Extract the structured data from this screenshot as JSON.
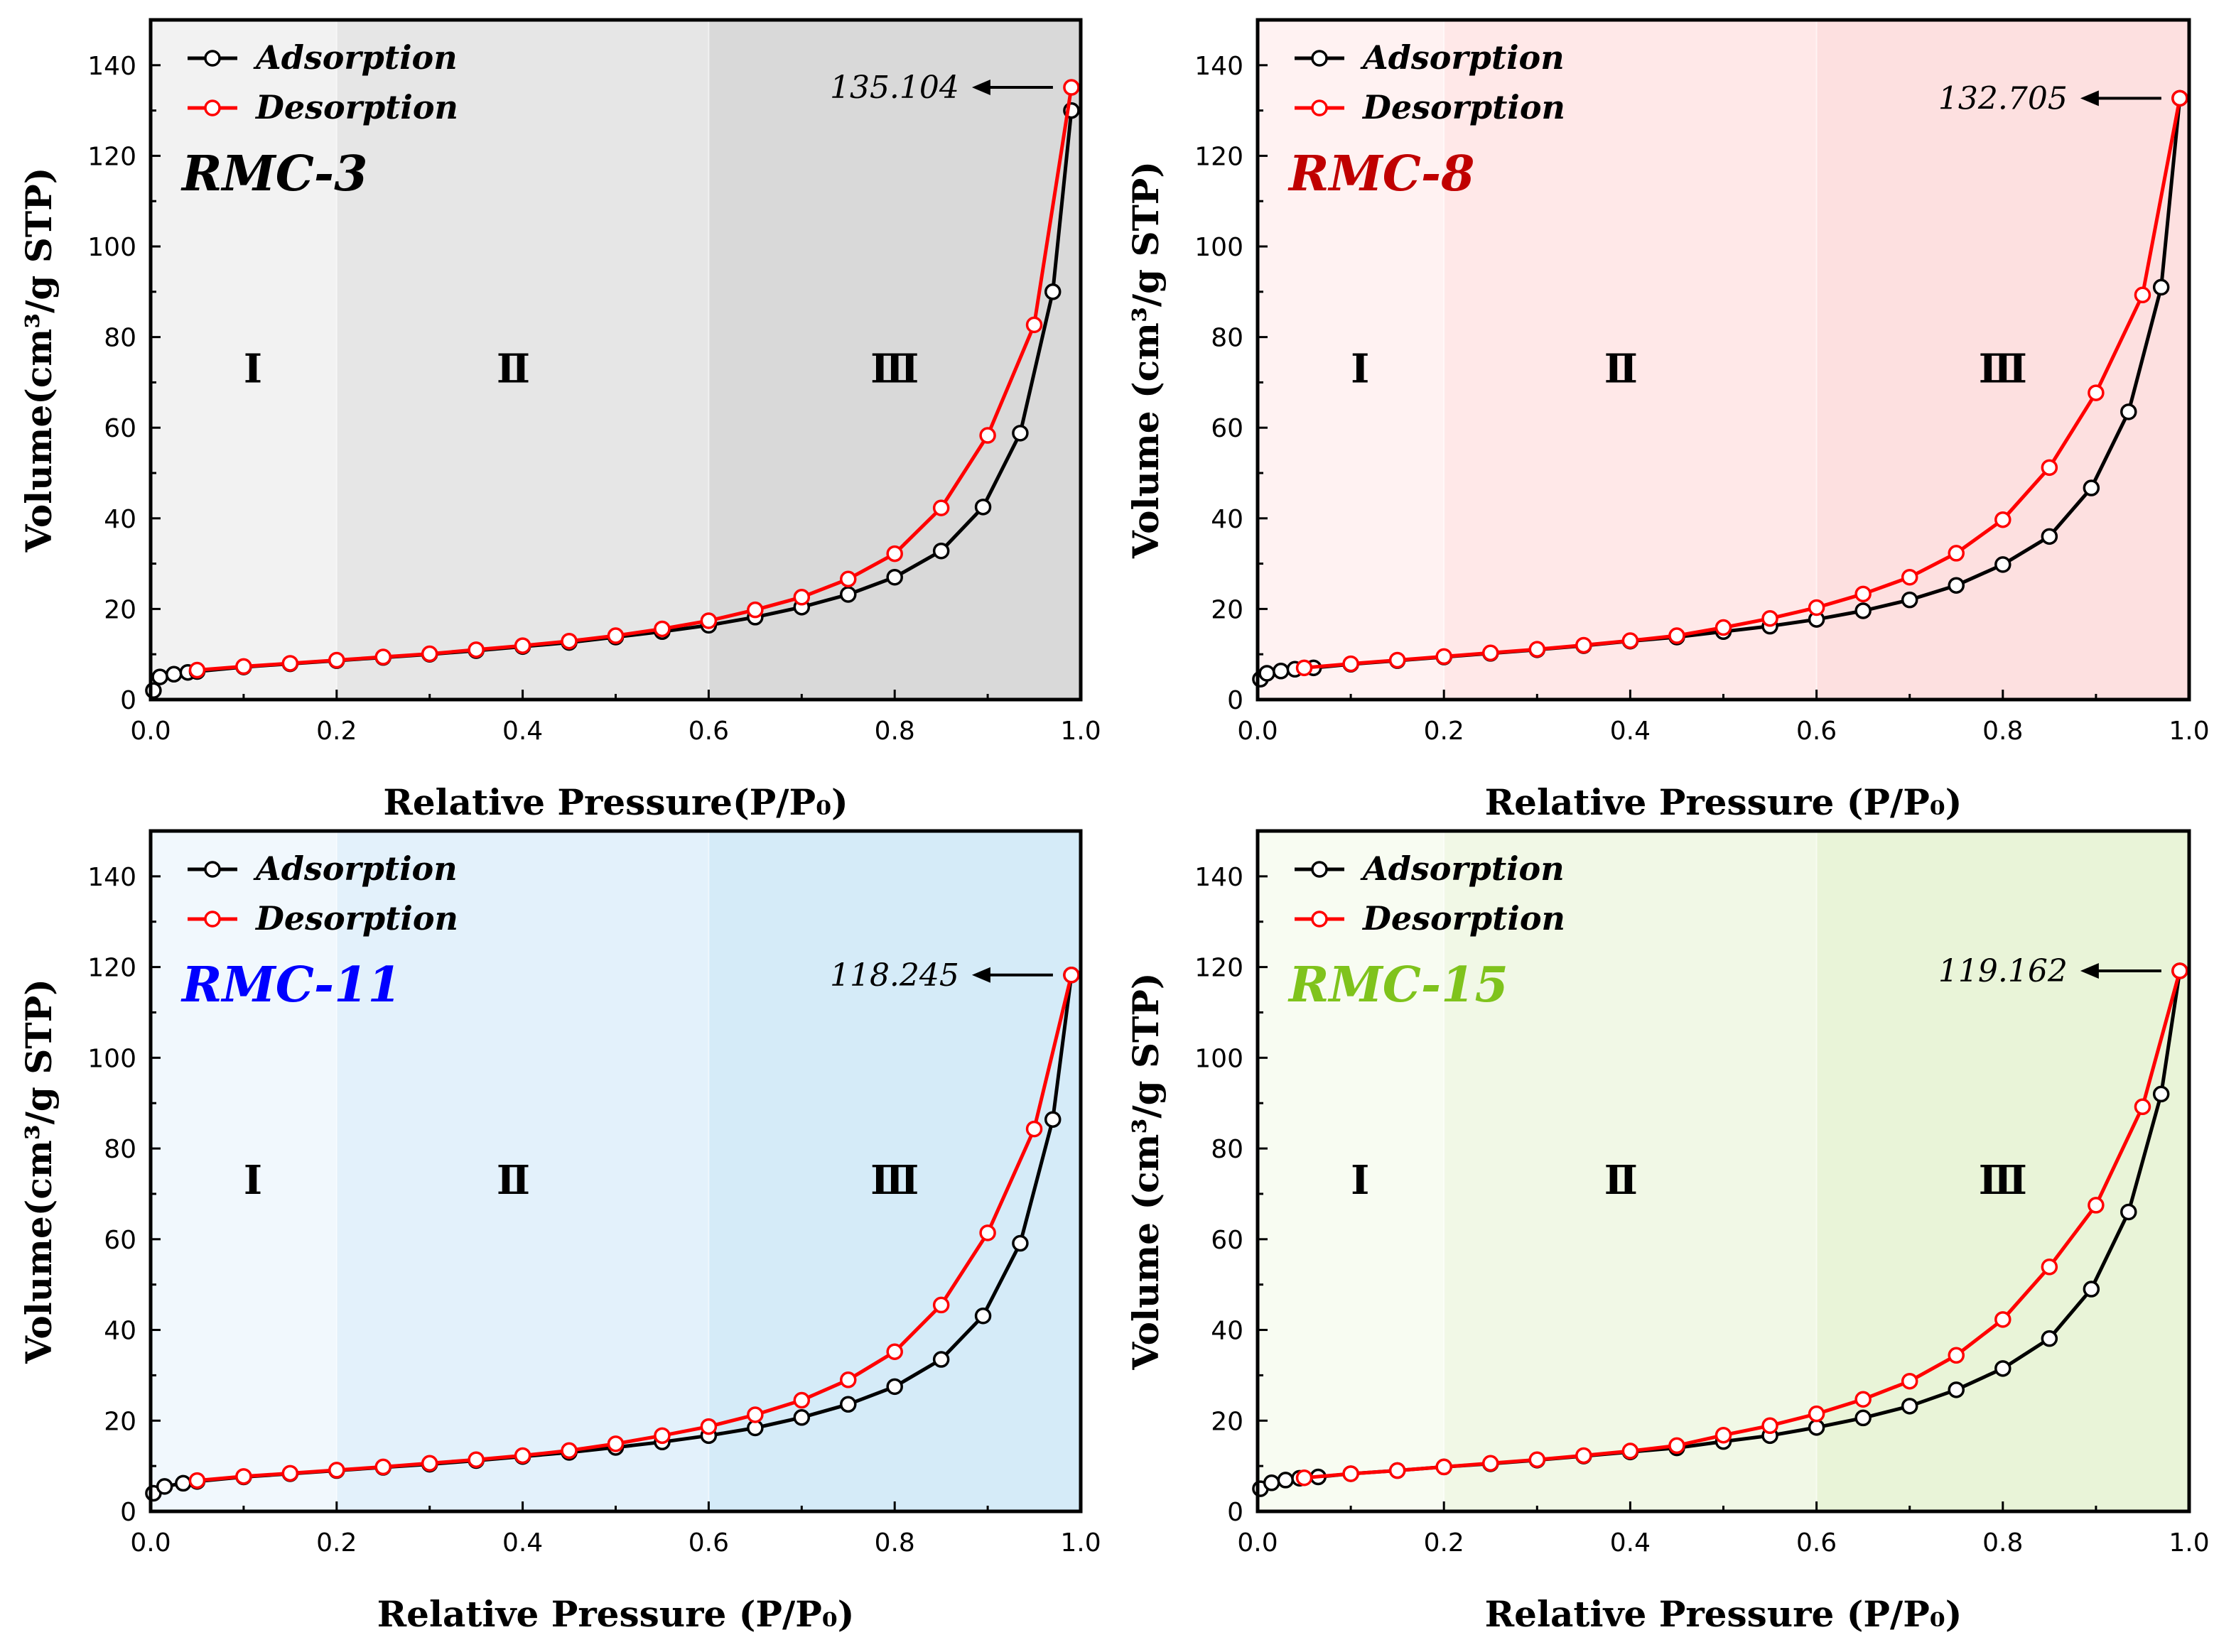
{
  "chart_data": [
    {
      "type": "line",
      "sample_label": "RMC-3",
      "label_color": "#000000",
      "zone_colors": [
        "#f2f2f2",
        "#e6e6e6",
        "#d9d9d9"
      ],
      "xlabel": "Relative Pressure(P/P₀)",
      "ylabel": "Volume(cm³/g STP)",
      "xlim": [
        0,
        1.0
      ],
      "ylim": [
        0,
        150
      ],
      "xticks": [
        "0.0",
        "0.2",
        "0.4",
        "0.6",
        "0.8",
        "1.0"
      ],
      "yticks": [
        "0",
        "20",
        "40",
        "60",
        "80",
        "100",
        "120",
        "140"
      ],
      "regions": [
        "Ⅰ",
        "Ⅱ",
        "Ⅲ"
      ],
      "region_bounds": [
        0,
        0.2,
        0.6,
        1.0
      ],
      "annotation": {
        "text": "135.104",
        "x": 0.99,
        "y": 135.104
      },
      "legend": [
        "Adsorption",
        "Desorption"
      ],
      "series": [
        {
          "name": "Adsorption",
          "color": "#000000",
          "x": [
            0.003,
            0.01,
            0.025,
            0.04,
            0.05,
            0.1,
            0.15,
            0.2,
            0.25,
            0.3,
            0.35,
            0.4,
            0.45,
            0.5,
            0.55,
            0.6,
            0.65,
            0.7,
            0.75,
            0.8,
            0.85,
            0.895,
            0.935,
            0.97,
            0.99
          ],
          "y": [
            2.0,
            5.0,
            5.6,
            6.0,
            6.2,
            7.2,
            7.9,
            8.6,
            9.3,
            10.0,
            10.8,
            11.7,
            12.6,
            13.8,
            15.0,
            16.4,
            18.2,
            20.4,
            23.2,
            27.0,
            32.8,
            42.5,
            58.8,
            90.0,
            130.0
          ]
        },
        {
          "name": "Desorption",
          "color": "#ff0000",
          "x": [
            0.05,
            0.1,
            0.15,
            0.2,
            0.25,
            0.3,
            0.35,
            0.4,
            0.45,
            0.5,
            0.55,
            0.6,
            0.65,
            0.7,
            0.75,
            0.8,
            0.85,
            0.9,
            0.95,
            0.99
          ],
          "y": [
            6.5,
            7.3,
            8.0,
            8.7,
            9.4,
            10.1,
            11.0,
            11.9,
            12.9,
            14.1,
            15.6,
            17.4,
            19.8,
            22.6,
            26.6,
            32.2,
            42.3,
            58.3,
            82.7,
            135.104
          ]
        }
      ]
    },
    {
      "type": "line",
      "sample_label": "RMC-8",
      "label_color": "#c00000",
      "zone_colors": [
        "#fff2f2",
        "#ffe8e8",
        "#fde0e0"
      ],
      "xlabel": "Relative Pressure (P/P₀)",
      "ylabel": "Volume (cm³/g STP)",
      "xlim": [
        0,
        1.0
      ],
      "ylim": [
        0,
        150
      ],
      "xticks": [
        "0.0",
        "0.2",
        "0.4",
        "0.6",
        "0.8",
        "1.0"
      ],
      "yticks": [
        "0",
        "20",
        "40",
        "60",
        "80",
        "100",
        "120",
        "140"
      ],
      "regions": [
        "Ⅰ",
        "Ⅱ",
        "Ⅲ"
      ],
      "region_bounds": [
        0,
        0.2,
        0.6,
        1.0
      ],
      "annotation": {
        "text": "132.705",
        "x": 0.99,
        "y": 132.705
      },
      "legend": [
        "Adsorption",
        "Desorption"
      ],
      "series": [
        {
          "name": "Adsorption",
          "color": "#000000",
          "x": [
            0.003,
            0.01,
            0.025,
            0.04,
            0.06,
            0.1,
            0.15,
            0.2,
            0.25,
            0.3,
            0.35,
            0.4,
            0.45,
            0.5,
            0.55,
            0.6,
            0.65,
            0.7,
            0.75,
            0.8,
            0.85,
            0.895,
            0.935,
            0.97,
            0.99
          ],
          "y": [
            4.5,
            5.8,
            6.3,
            6.7,
            7.0,
            7.8,
            8.6,
            9.4,
            10.2,
            11.0,
            11.9,
            12.9,
            13.8,
            15.0,
            16.2,
            17.7,
            19.6,
            22.0,
            25.2,
            29.8,
            36.0,
            46.7,
            63.5,
            91.0,
            132.705
          ]
        },
        {
          "name": "Desorption",
          "color": "#ff0000",
          "x": [
            0.05,
            0.1,
            0.15,
            0.2,
            0.25,
            0.3,
            0.35,
            0.4,
            0.45,
            0.5,
            0.55,
            0.6,
            0.65,
            0.7,
            0.75,
            0.8,
            0.85,
            0.9,
            0.95,
            0.99
          ],
          "y": [
            7.0,
            7.9,
            8.7,
            9.5,
            10.3,
            11.1,
            12.0,
            13.0,
            14.1,
            15.9,
            17.9,
            20.3,
            23.3,
            27.0,
            32.3,
            39.7,
            51.2,
            67.7,
            89.3,
            132.705
          ]
        }
      ]
    },
    {
      "type": "line",
      "sample_label": "RMC-11",
      "label_color": "#0000ff",
      "zone_colors": [
        "#f1f8fd",
        "#e3f1fb",
        "#d5ebf8"
      ],
      "xlabel": "Relative Pressure (P/P₀)",
      "ylabel": "Volume(cm³/g STP)",
      "xlim": [
        0,
        1.0
      ],
      "ylim": [
        0,
        150
      ],
      "xticks": [
        "0.0",
        "0.2",
        "0.4",
        "0.6",
        "0.8",
        "1.0"
      ],
      "yticks": [
        "0",
        "20",
        "40",
        "60",
        "80",
        "100",
        "120",
        "140"
      ],
      "regions": [
        "Ⅰ",
        "Ⅱ",
        "Ⅲ"
      ],
      "region_bounds": [
        0,
        0.2,
        0.6,
        1.0
      ],
      "annotation": {
        "text": "118.245",
        "x": 0.99,
        "y": 118.245
      },
      "legend": [
        "Adsorption",
        "Desorption"
      ],
      "series": [
        {
          "name": "Adsorption",
          "color": "#000000",
          "x": [
            0.003,
            0.015,
            0.035,
            0.05,
            0.1,
            0.15,
            0.2,
            0.25,
            0.3,
            0.35,
            0.4,
            0.45,
            0.5,
            0.55,
            0.6,
            0.65,
            0.7,
            0.75,
            0.8,
            0.85,
            0.895,
            0.935,
            0.97,
            0.99
          ],
          "y": [
            4.0,
            5.5,
            6.2,
            6.6,
            7.6,
            8.3,
            9.0,
            9.7,
            10.4,
            11.2,
            12.1,
            13.0,
            14.1,
            15.3,
            16.7,
            18.4,
            20.7,
            23.6,
            27.5,
            33.5,
            43.1,
            59.1,
            86.4,
            118.245
          ]
        },
        {
          "name": "Desorption",
          "color": "#ff0000",
          "x": [
            0.05,
            0.1,
            0.15,
            0.2,
            0.25,
            0.3,
            0.35,
            0.4,
            0.45,
            0.5,
            0.55,
            0.6,
            0.65,
            0.7,
            0.75,
            0.8,
            0.85,
            0.9,
            0.95,
            0.99
          ],
          "y": [
            6.8,
            7.7,
            8.4,
            9.1,
            9.8,
            10.6,
            11.4,
            12.3,
            13.4,
            14.9,
            16.7,
            18.7,
            21.3,
            24.5,
            29.0,
            35.2,
            45.5,
            61.4,
            84.3,
            118.245
          ]
        }
      ]
    },
    {
      "type": "line",
      "sample_label": "RMC-15",
      "label_color": "#7fc31c",
      "zone_colors": [
        "#f8fcf2",
        "#f1f8e6",
        "#e9f4d8"
      ],
      "xlabel": "Relative Pressure (P/P₀)",
      "ylabel": "Volume (cm³/g STP)",
      "xlim": [
        0,
        1.0
      ],
      "ylim": [
        0,
        150
      ],
      "xticks": [
        "0.0",
        "0.2",
        "0.4",
        "0.6",
        "0.8",
        "1.0"
      ],
      "yticks": [
        "0",
        "20",
        "40",
        "60",
        "80",
        "100",
        "120",
        "140"
      ],
      "regions": [
        "Ⅰ",
        "Ⅱ",
        "Ⅲ"
      ],
      "region_bounds": [
        0,
        0.2,
        0.6,
        1.0
      ],
      "annotation": {
        "text": "119.162",
        "x": 0.99,
        "y": 119.162
      },
      "legend": [
        "Adsorption",
        "Desorption"
      ],
      "series": [
        {
          "name": "Adsorption",
          "color": "#000000",
          "x": [
            0.003,
            0.015,
            0.03,
            0.045,
            0.065,
            0.1,
            0.15,
            0.2,
            0.25,
            0.3,
            0.35,
            0.4,
            0.45,
            0.5,
            0.55,
            0.6,
            0.65,
            0.7,
            0.75,
            0.8,
            0.85,
            0.895,
            0.935,
            0.97,
            0.99
          ],
          "y": [
            5.0,
            6.3,
            6.9,
            7.3,
            7.6,
            8.3,
            9.0,
            9.8,
            10.5,
            11.3,
            12.2,
            13.1,
            14.0,
            15.4,
            16.7,
            18.5,
            20.6,
            23.2,
            26.8,
            31.5,
            38.1,
            49.0,
            66.0,
            92.0,
            119.162
          ]
        },
        {
          "name": "Desorption",
          "color": "#ff0000",
          "x": [
            0.05,
            0.1,
            0.15,
            0.2,
            0.25,
            0.3,
            0.35,
            0.4,
            0.45,
            0.5,
            0.55,
            0.6,
            0.65,
            0.7,
            0.75,
            0.8,
            0.85,
            0.9,
            0.95,
            0.99
          ],
          "y": [
            7.4,
            8.3,
            9.0,
            9.8,
            10.6,
            11.4,
            12.3,
            13.3,
            14.5,
            16.8,
            18.9,
            21.5,
            24.7,
            28.7,
            34.4,
            42.3,
            53.9,
            67.5,
            89.2,
            119.162
          ]
        }
      ]
    }
  ]
}
